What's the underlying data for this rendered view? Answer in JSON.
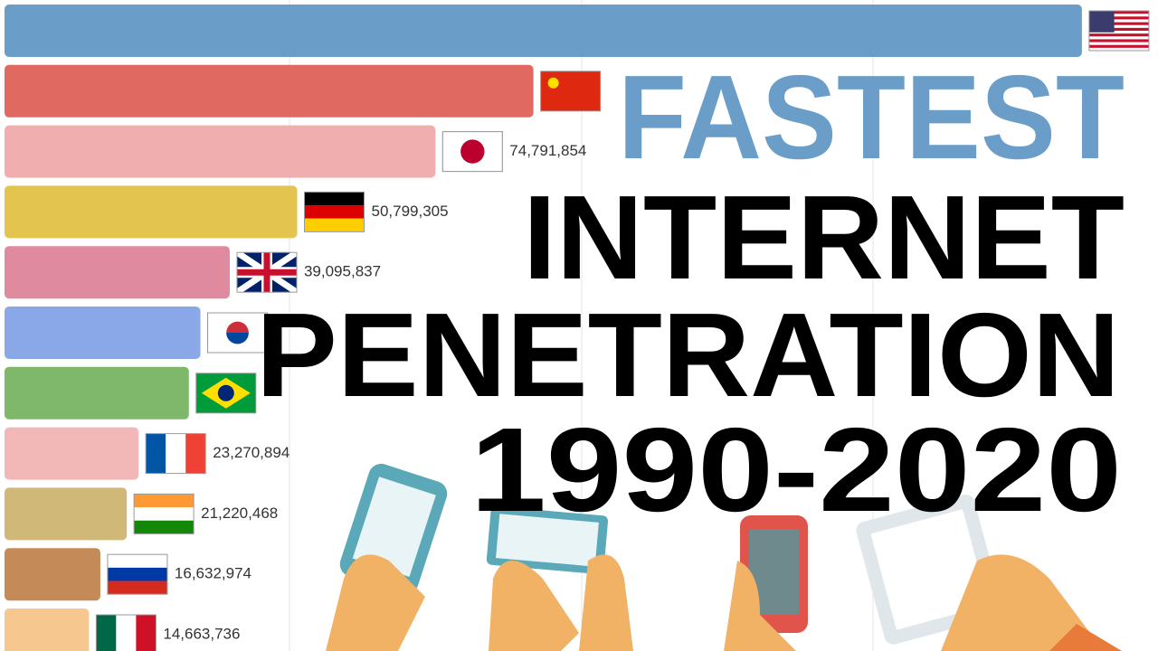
{
  "chart_data": {
    "type": "bar",
    "orientation": "horizontal",
    "title_lines": [
      "FASTEST",
      "INTERNET",
      "PENETRATION",
      "1990-2020"
    ],
    "title_colors": [
      "#6a9ec9",
      "#000000",
      "#000000",
      "#000000"
    ],
    "values": [
      187000000,
      91800000,
      74791854,
      50799305,
      39095837,
      34000000,
      32000000,
      23270894,
      21220468,
      16632974,
      14663736
    ],
    "value_labels": [
      null,
      null,
      "74,791,854",
      "50,799,305",
      "39,095,837",
      null,
      null,
      "23,270,894",
      "21,220,468",
      "16,632,974",
      "14,663,736"
    ],
    "colors": [
      "#6a9ec9",
      "#e06a62",
      "#f0aeae",
      "#e2c44f",
      "#e08aa0",
      "#8aa8e8",
      "#7fb86a",
      "#f2b8b8",
      "#cfb878",
      "#c48a58",
      "#f6c890"
    ],
    "xlim": [
      0,
      190000000
    ]
  }
}
